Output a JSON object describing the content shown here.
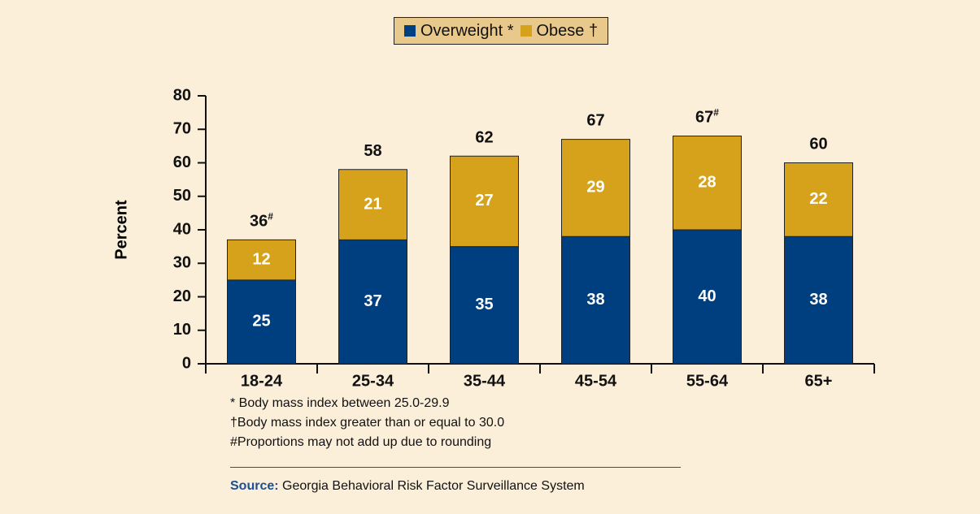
{
  "chart_data": {
    "type": "bar",
    "stacked": true,
    "categories": [
      "18-24",
      "25-34",
      "35-44",
      "45-54",
      "55-64",
      "65+"
    ],
    "series": [
      {
        "name": "Overweight *",
        "color": "#003f7f",
        "values": [
          25,
          37,
          35,
          38,
          40,
          38
        ]
      },
      {
        "name": "Obese †",
        "color": "#d6a21b",
        "values": [
          12,
          21,
          27,
          29,
          28,
          22
        ]
      }
    ],
    "totals": [
      36,
      58,
      62,
      67,
      67,
      60
    ],
    "total_notes": [
      "#",
      null,
      null,
      null,
      "#",
      null
    ],
    "ylim": [
      0,
      80
    ],
    "yticks": [
      0,
      10,
      20,
      30,
      40,
      50,
      60,
      70,
      80
    ],
    "ylabel": "Percent",
    "footnotes": [
      "* Body mass index between 25.0-29.9",
      "†Body mass index greater than or equal to 30.0",
      "#Proportions may not add up due to rounding"
    ],
    "source": {
      "label": "Source:",
      "text": "Georgia Behavioral Risk Factor Surveillance System"
    }
  }
}
